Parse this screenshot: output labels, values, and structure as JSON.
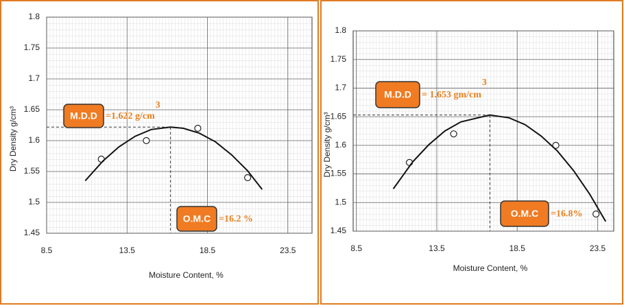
{
  "chart_data": [
    {
      "type": "scatter",
      "x_label": "Moisture Content, %",
      "y_label": "Dry Density g/cm³",
      "xlim": [
        8.5,
        25
      ],
      "ylim": [
        1.45,
        1.8
      ],
      "xticks": [
        8.5,
        13.5,
        18.5,
        23.5
      ],
      "yticks": [
        1.45,
        1.5,
        1.55,
        1.6,
        1.65,
        1.7,
        1.75,
        1.8
      ],
      "grid": true,
      "series": [
        {
          "color": "#222",
          "x": [
            11.9,
            14.7,
            17.9,
            21.0
          ],
          "values": [
            1.57,
            1.6,
            1.62,
            1.54
          ]
        },
        {
          "color": "#111",
          "x": [
            10.9,
            12,
            13,
            14,
            15,
            16.2,
            17,
            18,
            19,
            20,
            21,
            21.9
          ],
          "values": [
            1.535,
            1.567,
            1.59,
            1.607,
            1.618,
            1.622,
            1.62,
            1.612,
            1.598,
            1.577,
            1.551,
            1.521
          ]
        }
      ],
      "mdd": 1.622,
      "omc": 16.2,
      "mdd_label": "M.D.D",
      "mdd_text": "=1.622 g/cm",
      "mdd_exp": "3",
      "omc_label": "O.M.C",
      "omc_text": "=16.2 %"
    },
    {
      "type": "scatter",
      "x_label": "Moisture Content, %",
      "y_label": "Dry Density g/cm³",
      "xlim": [
        8.3,
        24.5
      ],
      "ylim": [
        1.45,
        1.8
      ],
      "xticks": [
        8.5,
        13.5,
        18.5,
        23.5
      ],
      "yticks": [
        1.45,
        1.5,
        1.55,
        1.6,
        1.65,
        1.7,
        1.75,
        1.8
      ],
      "grid": true,
      "series": [
        {
          "color": "#222",
          "x": [
            11.8,
            14.55,
            20.9,
            23.4
          ],
          "values": [
            1.57,
            1.62,
            1.6,
            1.48
          ]
        },
        {
          "color": "#111",
          "x": [
            10.8,
            12,
            13,
            14,
            15,
            16.8,
            18,
            19,
            20,
            21,
            22,
            23,
            24
          ],
          "values": [
            1.524,
            1.571,
            1.601,
            1.625,
            1.641,
            1.653,
            1.648,
            1.636,
            1.616,
            1.59,
            1.556,
            1.515,
            1.467
          ]
        }
      ],
      "mdd": 1.653,
      "omc": 16.8,
      "mdd_label": "M.D.D",
      "mdd_text": "= 1.653 gm/cm",
      "mdd_exp": "3",
      "omc_label": "O.M.C",
      "omc_text": "=16.8%"
    }
  ]
}
